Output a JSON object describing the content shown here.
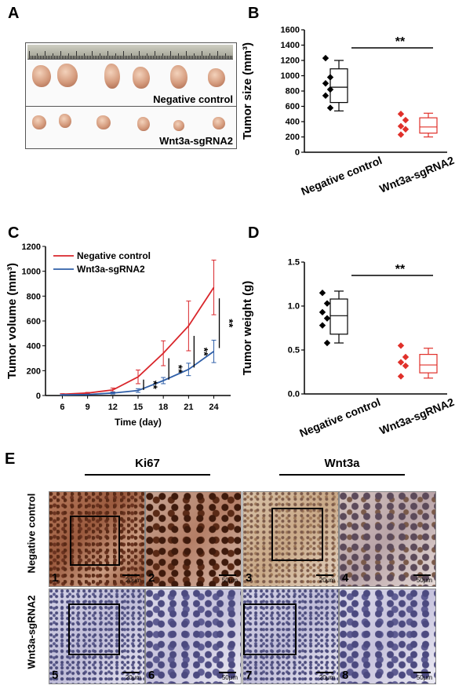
{
  "panels": {
    "A": "A",
    "B": "B",
    "C": "C",
    "D": "D",
    "E": "E"
  },
  "panelA": {
    "row1_label": "Negative control",
    "row2_label": "Wnt3a-sgRNA2"
  },
  "panelE": {
    "ki67_label": "Ki67",
    "wnt3a_label": "Wnt3a",
    "row1_label": "Negative control",
    "row2_label": "Wnt3a-sgRNA2",
    "tiles": [
      {
        "num": "1",
        "scale": "20μm"
      },
      {
        "num": "2",
        "scale": "50μm"
      },
      {
        "num": "3",
        "scale": "20μm"
      },
      {
        "num": "4",
        "scale": "50μm"
      },
      {
        "num": "5",
        "scale": "20μm"
      },
      {
        "num": "6",
        "scale": "50μm"
      },
      {
        "num": "7",
        "scale": "20μm"
      },
      {
        "num": "8",
        "scale": "50μm"
      }
    ]
  },
  "colors": {
    "negative": "#000000",
    "sgrna": "#e0302a",
    "line_negative": "#d9262b",
    "line_sgrna": "#2f5fa8"
  },
  "chart_data": [
    {
      "id": "B",
      "type": "box",
      "ylabel": "Tumor size (mm³)",
      "ylim": [
        0,
        1600
      ],
      "yticks": [
        0,
        200,
        400,
        600,
        800,
        1000,
        1200,
        1400,
        1600
      ],
      "categories": [
        "Negative control",
        "Wnt3a-sgRNA2"
      ],
      "significance": "**",
      "groups": [
        {
          "name": "Negative control",
          "points": [
            1230,
            980,
            900,
            820,
            740,
            580
          ],
          "whisker_low": 540,
          "q1": 650,
          "median": 850,
          "q3": 1090,
          "whisker_high": 1200
        },
        {
          "name": "Wnt3a-sgRNA2",
          "points": [
            500,
            420,
            340,
            300,
            230
          ],
          "whisker_low": 200,
          "q1": 250,
          "median": 330,
          "q3": 450,
          "whisker_high": 510
        }
      ]
    },
    {
      "id": "C",
      "type": "line",
      "xlabel": "Time (day)",
      "ylabel": "Tumor volume (mm³)",
      "xticks": [
        6,
        9,
        12,
        15,
        18,
        21,
        24
      ],
      "ylim": [
        0,
        1200
      ],
      "yticks": [
        0,
        200,
        400,
        600,
        800,
        1000,
        1200
      ],
      "significance_marks": [
        "**",
        "**",
        "**",
        "**"
      ],
      "series": [
        {
          "name": "Negative control",
          "x": [
            6,
            9,
            12,
            15,
            18,
            21,
            24
          ],
          "y": [
            10,
            20,
            45,
            150,
            340,
            560,
            870
          ],
          "err": [
            5,
            5,
            15,
            55,
            100,
            200,
            220
          ]
        },
        {
          "name": "Wnt3a-sgRNA2",
          "x": [
            6,
            9,
            12,
            15,
            18,
            21,
            24
          ],
          "y": [
            5,
            8,
            20,
            40,
            120,
            210,
            355
          ],
          "err": [
            3,
            3,
            8,
            15,
            25,
            50,
            90
          ]
        }
      ]
    },
    {
      "id": "D",
      "type": "box",
      "ylabel": "Tumor weight (g)",
      "ylim": [
        0,
        1.5
      ],
      "yticks": [
        0.0,
        0.5,
        1.0,
        1.5
      ],
      "categories": [
        "Negative control",
        "Wnt3a-sgRNA2"
      ],
      "significance": "**",
      "groups": [
        {
          "name": "Negative control",
          "points": [
            1.15,
            1.03,
            0.93,
            0.86,
            0.78,
            0.58
          ],
          "whisker_low": 0.58,
          "q1": 0.68,
          "median": 0.89,
          "q3": 1.08,
          "whisker_high": 1.17
        },
        {
          "name": "Wnt3a-sgRNA2",
          "points": [
            0.55,
            0.42,
            0.36,
            0.32,
            0.2
          ],
          "whisker_low": 0.18,
          "q1": 0.24,
          "median": 0.33,
          "q3": 0.45,
          "whisker_high": 0.52
        }
      ]
    }
  ]
}
